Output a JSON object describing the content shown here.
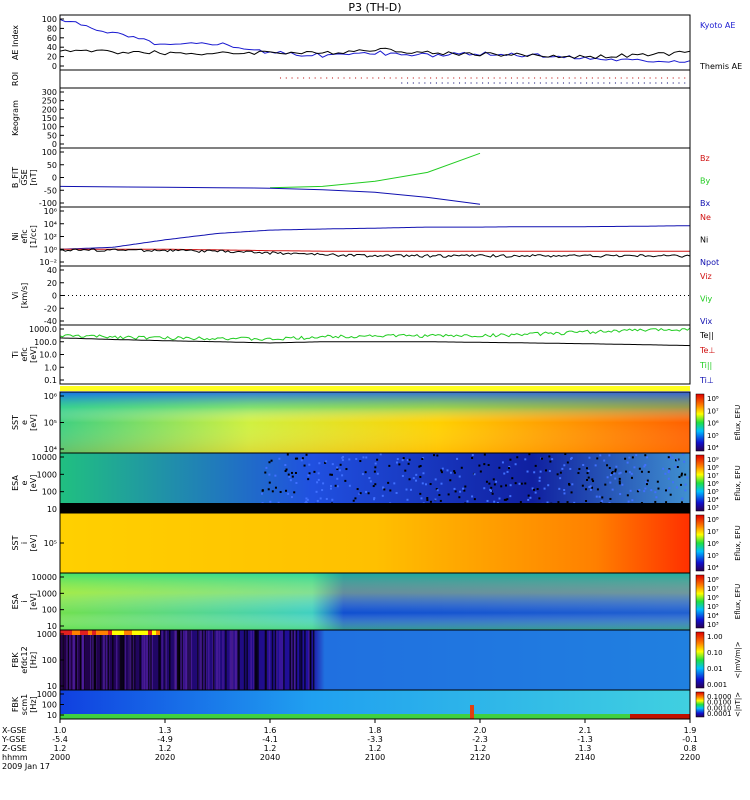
{
  "title": "P3 (TH-D)",
  "colors": {
    "kyoto": "#1a1ad0",
    "themis": "#000000",
    "red": "#d01010",
    "green": "#22cc22",
    "blue": "#1010b0"
  },
  "panels": [
    {
      "id": "ae",
      "ylabel": [
        "AE Index"
      ],
      "yticks": [
        "100",
        "80",
        "60",
        "40",
        "20",
        "0"
      ],
      "legend": [
        {
          "text": "Kyoto AE",
          "color": "#1a1ad0"
        },
        {
          "text": "Themis AE",
          "color": "#000000"
        }
      ]
    },
    {
      "id": "roi",
      "ylabel": [
        "ROI"
      ],
      "yticks": [],
      "legend": []
    },
    {
      "id": "keogram",
      "ylabel": [
        "Keogram"
      ],
      "yticks": [
        "300",
        "250",
        "200",
        "150",
        "100",
        "50",
        "0"
      ],
      "legend": []
    },
    {
      "id": "bfield",
      "ylabel": [
        "B_FIT",
        "GSE",
        "[nT]"
      ],
      "yticks": [
        "100",
        "50",
        "0",
        "-50",
        "-100"
      ],
      "legend": [
        {
          "text": "Bz",
          "color": "#d01010"
        },
        {
          "text": "By",
          "color": "#22cc22"
        },
        {
          "text": "Bx",
          "color": "#1010b0"
        }
      ]
    },
    {
      "id": "density",
      "ylabel": [
        "Ni",
        "eflc",
        "[1/cc]"
      ],
      "yticks": [
        "10⁶",
        "10⁴",
        "10²",
        "10⁰",
        "10⁻²"
      ],
      "legend": [
        {
          "text": "Ne",
          "color": "#d01010"
        },
        {
          "text": "Ni",
          "color": "#000000"
        },
        {
          "text": "Npot",
          "color": "#1010b0"
        }
      ]
    },
    {
      "id": "velocity",
      "ylabel": [
        "Vi",
        "[km/s]"
      ],
      "yticks": [
        "40",
        "20",
        "0",
        "-20",
        "-40"
      ],
      "legend": [
        {
          "text": "Viz",
          "color": "#d01010"
        },
        {
          "text": "Viy",
          "color": "#22cc22"
        },
        {
          "text": "Vix",
          "color": "#1010b0"
        }
      ]
    },
    {
      "id": "temperature",
      "ylabel": [
        "Ti",
        "eflc",
        "[eV]"
      ],
      "yticks": [
        "1000.0",
        "100.0",
        "10.0",
        "1.0",
        "0.1"
      ],
      "legend": [
        {
          "text": "Te||",
          "color": "#000000"
        },
        {
          "text": "Te⊥",
          "color": "#d01010"
        },
        {
          "text": "Ti||",
          "color": "#22cc22"
        },
        {
          "text": "Ti⊥",
          "color": "#1010b0"
        }
      ]
    },
    {
      "id": "sst_e",
      "ylabel": [
        "SST",
        "e",
        "[eV]"
      ],
      "yticks": [
        "10⁶",
        "10⁵",
        "10⁴"
      ],
      "colorbar": {
        "labels": [
          "10⁸",
          "10⁷",
          "10⁶",
          "10⁵",
          "10⁴"
        ],
        "title": "Eflux, EFU"
      }
    },
    {
      "id": "esa_e",
      "ylabel": [
        "ESA",
        "e",
        "[eV]"
      ],
      "yticks": [
        "10000",
        "1000",
        "100",
        "10"
      ],
      "colorbar": {
        "labels": [
          "10⁹",
          "10⁸",
          "10⁷",
          "10⁶",
          "10⁵",
          "10⁴",
          "10³"
        ],
        "title": "Eflux, EFU"
      }
    },
    {
      "id": "sst_i",
      "ylabel": [
        "SST",
        "i",
        "[eV]"
      ],
      "yticks": [
        "10⁵"
      ],
      "colorbar": {
        "labels": [
          "10⁸",
          "10⁷",
          "10⁶",
          "10⁵",
          "10⁴"
        ],
        "title": "Eflux, EFU"
      }
    },
    {
      "id": "esa_i",
      "ylabel": [
        "ESA",
        "i",
        "[eV]"
      ],
      "yticks": [
        "10000",
        "1000",
        "100",
        "10"
      ],
      "colorbar": {
        "labels": [
          "10⁸",
          "10⁷",
          "10⁶",
          "10⁵",
          "10⁴",
          "10³"
        ],
        "title": "Eflux, EFU"
      }
    },
    {
      "id": "fbk_e12",
      "ylabel": [
        "FBK",
        "efdc12",
        "[Hz]"
      ],
      "yticks": [
        "1000",
        "100",
        "10"
      ],
      "colorbar": {
        "labels": [
          "1.00",
          "0.10",
          "0.01",
          "0.001"
        ],
        "title": "<|mV/m|>"
      }
    },
    {
      "id": "fbk_scm",
      "ylabel": [
        "FBK",
        "scm1",
        "[Hz]"
      ],
      "yticks": [
        "1000",
        "100",
        "10"
      ],
      "colorbar": {
        "labels": [
          "0.1000",
          "0.0100",
          "0.0010",
          "0.0001"
        ],
        "title": "<|nT|>"
      }
    }
  ],
  "xaxis": {
    "row_labels": [
      "X-GSE",
      "Y-GSE",
      "Z-GSE",
      "hhmm",
      "2009 Jan 17"
    ],
    "ticks": [
      {
        "x": [
          "1.0",
          "-5.4",
          "1.2",
          "2000"
        ]
      },
      {
        "x": [
          "1.3",
          "-4.9",
          "1.2",
          "2020"
        ]
      },
      {
        "x": [
          "1.6",
          "-4.1",
          "1.2",
          "2040"
        ]
      },
      {
        "x": [
          "1.8",
          "-3.3",
          "1.2",
          "2100"
        ]
      },
      {
        "x": [
          "2.0",
          "-2.3",
          "1.2",
          "2120"
        ]
      },
      {
        "x": [
          "2.1",
          "-1.3",
          "1.3",
          "2140"
        ]
      },
      {
        "x": [
          "1.9",
          "-0.1",
          "0.8",
          "2200"
        ]
      }
    ]
  },
  "chart_data": {
    "type": "line",
    "title": "P3 (TH-D)",
    "x_unit": "hhmm (2009 Jan 17)",
    "x": [
      2000,
      2010,
      2020,
      2030,
      2040,
      2050,
      2100,
      2110,
      2120,
      2130,
      2140,
      2150,
      2200
    ],
    "series": [
      {
        "name": "Kyoto AE",
        "panel": "AE Index",
        "values": [
          95,
          70,
          45,
          50,
          30,
          25,
          30,
          25,
          28,
          25,
          20,
          15,
          15
        ]
      },
      {
        "name": "Themis AE",
        "panel": "AE Index",
        "values": [
          35,
          32,
          30,
          28,
          32,
          28,
          38,
          30,
          28,
          25,
          22,
          25,
          30
        ]
      },
      {
        "name": "By",
        "panel": "B_FIT GSE [nT]",
        "values": [
          null,
          null,
          null,
          null,
          -40,
          -35,
          -15,
          20,
          95,
          null,
          null,
          null,
          null
        ]
      },
      {
        "name": "Bx",
        "panel": "B_FIT GSE [nT]",
        "values": [
          -35,
          -37,
          -38,
          -40,
          -42,
          -48,
          -58,
          -78,
          -105,
          null,
          null,
          null,
          null
        ]
      },
      {
        "name": "Npot",
        "panel": "Ni eflc [1/cc]",
        "values": [
          1,
          2,
          30,
          300,
          1000,
          1500,
          2000,
          3000,
          3000,
          3500,
          3500,
          4000,
          5000
        ]
      },
      {
        "name": "Ne",
        "panel": "Ni eflc [1/cc]",
        "values": [
          1,
          1,
          1,
          0.8,
          0.6,
          0.5,
          0.5,
          0.5,
          0.5,
          0.5,
          0.5,
          0.5,
          0.5
        ]
      },
      {
        "name": "Ni",
        "panel": "Ni eflc [1/cc]",
        "values": [
          0.8,
          0.8,
          0.7,
          0.5,
          0.3,
          0.15,
          0.1,
          0.1,
          0.1,
          0.1,
          0.1,
          0.1,
          0.1
        ]
      },
      {
        "name": "Ti||",
        "panel": "Ti eflc [eV]",
        "values": [
          300,
          250,
          200,
          200,
          150,
          250,
          300,
          300,
          300,
          400,
          600,
          800,
          1000
        ]
      },
      {
        "name": "Te||",
        "panel": "Ti eflc [eV]",
        "values": [
          200,
          150,
          120,
          100,
          80,
          100,
          100,
          100,
          90,
          80,
          70,
          60,
          50
        ]
      }
    ]
  }
}
